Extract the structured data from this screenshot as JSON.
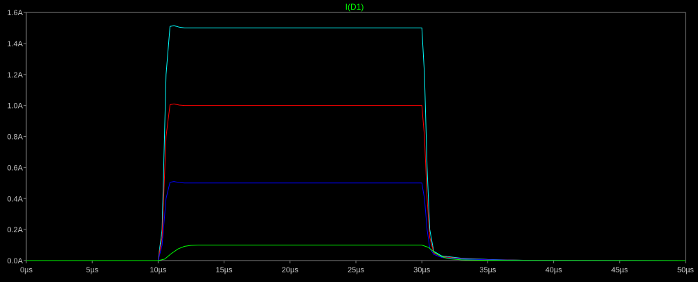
{
  "chart_data": {
    "type": "line",
    "title": "I(D1)",
    "title_color": "#00ff00",
    "xlabel": "",
    "ylabel": "",
    "x_unit": "µs",
    "y_unit": "A",
    "xlim": [
      0,
      50
    ],
    "ylim": [
      0,
      1.6
    ],
    "x_ticks": [
      0,
      5,
      10,
      15,
      20,
      25,
      30,
      35,
      40,
      45,
      50
    ],
    "y_ticks": [
      0.0,
      0.2,
      0.4,
      0.6,
      0.8,
      1.0,
      1.2,
      1.4,
      1.6
    ],
    "x_tick_labels": [
      "0µs",
      "5µs",
      "10µs",
      "15µs",
      "20µs",
      "25µs",
      "30µs",
      "35µs",
      "40µs",
      "45µs",
      "50µs"
    ],
    "y_tick_labels": [
      "0.0A",
      "0.2A",
      "0.4A",
      "0.6A",
      "0.8A",
      "1.0A",
      "1.2A",
      "1.4A",
      "1.6A"
    ],
    "grid": false,
    "background": "#000000",
    "axis_color": "#808080",
    "series": [
      {
        "color": "#00ffff",
        "points": [
          [
            0,
            0
          ],
          [
            10,
            0
          ],
          [
            10.3,
            0.2
          ],
          [
            10.6,
            1.2
          ],
          [
            10.9,
            1.51
          ],
          [
            11.2,
            1.515
          ],
          [
            11.6,
            1.505
          ],
          [
            12,
            1.5
          ],
          [
            30,
            1.5
          ],
          [
            30.2,
            1.2
          ],
          [
            30.4,
            0.6
          ],
          [
            30.6,
            0.2
          ],
          [
            30.9,
            0.06
          ],
          [
            31.5,
            0.03
          ],
          [
            33,
            0.015
          ],
          [
            35,
            0.007
          ],
          [
            38,
            0.002
          ],
          [
            41,
            0.001
          ],
          [
            50,
            0
          ]
        ]
      },
      {
        "color": "#ff0000",
        "points": [
          [
            0,
            0
          ],
          [
            10,
            0
          ],
          [
            10.3,
            0.15
          ],
          [
            10.6,
            0.8
          ],
          [
            10.9,
            1.005
          ],
          [
            11.2,
            1.01
          ],
          [
            11.6,
            1.003
          ],
          [
            12,
            1.0
          ],
          [
            30,
            1.0
          ],
          [
            30.2,
            0.8
          ],
          [
            30.4,
            0.4
          ],
          [
            30.6,
            0.15
          ],
          [
            30.9,
            0.05
          ],
          [
            31.5,
            0.025
          ],
          [
            33,
            0.012
          ],
          [
            35,
            0.006
          ],
          [
            38,
            0.002
          ],
          [
            50,
            0
          ]
        ]
      },
      {
        "color": "#0000ff",
        "points": [
          [
            0,
            0
          ],
          [
            10,
            0
          ],
          [
            10.3,
            0.1
          ],
          [
            10.6,
            0.4
          ],
          [
            10.9,
            0.505
          ],
          [
            11.2,
            0.51
          ],
          [
            11.6,
            0.503
          ],
          [
            12,
            0.5
          ],
          [
            30,
            0.5
          ],
          [
            30.2,
            0.4
          ],
          [
            30.4,
            0.2
          ],
          [
            30.6,
            0.08
          ],
          [
            30.9,
            0.04
          ],
          [
            31.5,
            0.02
          ],
          [
            33,
            0.01
          ],
          [
            35,
            0.005
          ],
          [
            38.5,
            0.001
          ],
          [
            50,
            0
          ]
        ]
      },
      {
        "color": "#00ff00",
        "points": [
          [
            0,
            0
          ],
          [
            10,
            0
          ],
          [
            10.5,
            0.01
          ],
          [
            11,
            0.045
          ],
          [
            11.5,
            0.075
          ],
          [
            12,
            0.092
          ],
          [
            12.5,
            0.098
          ],
          [
            13,
            0.1
          ],
          [
            30,
            0.1
          ],
          [
            30.5,
            0.085
          ],
          [
            31,
            0.05
          ],
          [
            31.5,
            0.025
          ],
          [
            32,
            0.012
          ],
          [
            33,
            0.005
          ],
          [
            35,
            0.002
          ],
          [
            38,
            0.001
          ],
          [
            50,
            0
          ]
        ]
      }
    ]
  }
}
